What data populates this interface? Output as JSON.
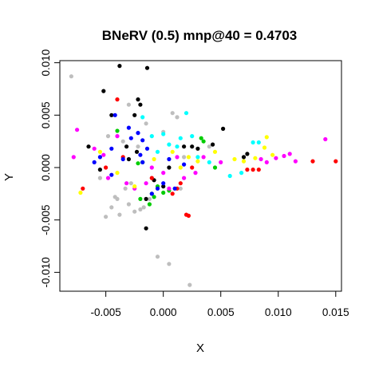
{
  "chart_data": {
    "type": "scatter",
    "title": "BNeRV (0.5) mnp@40 = 0.4703",
    "xlabel": "X",
    "ylabel": "Y",
    "xlim": [
      -0.009,
      0.0155
    ],
    "ylim": [
      -0.0118,
      0.0102
    ],
    "xticks": [
      -0.005,
      0.0,
      0.005,
      0.01,
      0.015
    ],
    "xtick_labels": [
      "-0.005",
      "0.000",
      "0.005",
      "0.010",
      "0.015"
    ],
    "yticks": [
      -0.01,
      -0.005,
      0.0,
      0.005,
      0.01
    ],
    "ytick_labels": [
      "-0.010",
      "-0.005",
      "0.000",
      "0.005",
      "0.010"
    ],
    "grid": false,
    "colors": {
      "black": "#000000",
      "red": "#ff0000",
      "green": "#00cd00",
      "blue": "#0000ff",
      "cyan": "#00ffff",
      "magenta": "#ff00ff",
      "yellow": "#ffff00",
      "gray": "#bebebe"
    },
    "series": [
      {
        "name": "gray",
        "color": "#bebebe",
        "points": [
          [
            -0.008,
            0.0087
          ],
          [
            0.0023,
            -0.0112
          ],
          [
            -0.0005,
            -0.0085
          ],
          [
            0.0005,
            -0.0092
          ],
          [
            -0.0038,
            -0.0045
          ],
          [
            -0.005,
            -0.0047
          ],
          [
            -0.0025,
            -0.0042
          ],
          [
            -0.003,
            -0.0035
          ],
          [
            -0.0042,
            -0.0028
          ],
          [
            -0.002,
            -0.004
          ],
          [
            -0.0033,
            -0.002
          ],
          [
            -0.0012,
            -0.003
          ],
          [
            -0.0028,
            -0.0015
          ],
          [
            -0.0017,
            -0.0038
          ],
          [
            -0.0045,
            -0.0038
          ],
          [
            0.0008,
            0.0052
          ],
          [
            0.0012,
            0.0048
          ],
          [
            -0.003,
            0.006
          ],
          [
            -0.0022,
            0.002
          ],
          [
            -0.001,
            -0.001
          ],
          [
            0.0018,
            0.001
          ],
          [
            0.004,
            0.002
          ],
          [
            -0.0035,
            0.0025
          ],
          [
            -0.0048,
            0.003
          ],
          [
            0.0,
            0.0034
          ],
          [
            -0.0015,
            0.0042
          ],
          [
            -0.004,
            -0.003
          ],
          [
            0.0015,
            -0.002
          ],
          [
            -0.0055,
            -0.001
          ]
        ]
      },
      {
        "name": "black",
        "color": "#000000",
        "points": [
          [
            -0.0038,
            0.0097
          ],
          [
            -0.0014,
            0.0095
          ],
          [
            -0.0052,
            0.0073
          ],
          [
            -0.0045,
            0.005
          ],
          [
            -0.0022,
            0.0065
          ],
          [
            -0.002,
            0.006
          ],
          [
            -0.0015,
            -0.0058
          ],
          [
            0.0052,
            0.0037
          ],
          [
            0.0043,
            0.0022
          ],
          [
            0.0073,
            0.0013
          ],
          [
            0.007,
            0.001
          ],
          [
            0.0018,
            0.002
          ],
          [
            -0.0032,
            0.002
          ],
          [
            -0.003,
            0.0008
          ],
          [
            -0.0023,
            0.0015
          ],
          [
            -0.0055,
            -0.0002
          ],
          [
            -0.0065,
            0.002
          ],
          [
            -0.0015,
            -0.003
          ],
          [
            0.0,
            -0.0018
          ],
          [
            0.003,
            0.0018
          ],
          [
            0.0025,
            0.002
          ],
          [
            -0.0008,
            -0.0012
          ],
          [
            0.0005,
            0.0
          ],
          [
            -0.0025,
            0.005
          ]
        ]
      },
      {
        "name": "red",
        "color": "#ff0000",
        "points": [
          [
            -0.004,
            0.0065
          ],
          [
            0.002,
            -0.0045
          ],
          [
            0.0022,
            -0.0046
          ],
          [
            0.0073,
            -0.0002
          ],
          [
            0.0078,
            -0.0002
          ],
          [
            0.0083,
            -0.0002
          ],
          [
            0.013,
            0.0006
          ],
          [
            0.015,
            0.0006
          ],
          [
            0.0008,
            -0.0025
          ],
          [
            0.0012,
            -0.002
          ],
          [
            -0.007,
            -0.002
          ],
          [
            -0.0035,
            0.001
          ],
          [
            -0.001,
            -0.001
          ],
          [
            0.0025,
            0.0
          ],
          [
            0.0015,
            -0.0015
          ],
          [
            -0.005,
            0.0
          ]
        ]
      },
      {
        "name": "green",
        "color": "#00cd00",
        "points": [
          [
            -0.004,
            0.0035
          ],
          [
            -0.0018,
            0.0005
          ],
          [
            0.0033,
            0.0028
          ],
          [
            0.0035,
            0.0025
          ],
          [
            -0.0005,
            -0.0018
          ],
          [
            -0.001,
            -0.0025
          ],
          [
            -0.002,
            -0.003
          ],
          [
            -0.0012,
            -0.0035
          ],
          [
            0.0005,
            -0.0022
          ],
          [
            -0.0022,
            0.0004
          ],
          [
            0.0045,
            0.0
          ],
          [
            -0.0008,
            -0.0028
          ],
          [
            0.0,
            -0.0024
          ]
        ]
      },
      {
        "name": "blue",
        "color": "#0000ff",
        "points": [
          [
            -0.0042,
            0.005
          ],
          [
            -0.0022,
            0.0033
          ],
          [
            -0.0018,
            0.0026
          ],
          [
            -0.003,
            0.0038
          ],
          [
            -0.0045,
            0.0018
          ],
          [
            -0.0045,
            -0.0007
          ],
          [
            -0.0018,
            0.0005
          ],
          [
            -0.0014,
            0.0018
          ],
          [
            -0.0005,
            -0.002
          ],
          [
            -0.001,
            -0.0025
          ],
          [
            0.0018,
            0.0003
          ],
          [
            0.0005,
            0.0008
          ],
          [
            -0.0055,
            0.001
          ],
          [
            -0.002,
            0.0012
          ],
          [
            -0.0035,
            0.0008
          ],
          [
            0.0,
            -0.0015
          ],
          [
            0.001,
            -0.002
          ],
          [
            -0.0028,
            0.0028
          ],
          [
            -0.006,
            0.0005
          ]
        ]
      },
      {
        "name": "cyan",
        "color": "#00ffff",
        "points": [
          [
            0.002,
            0.0052
          ],
          [
            -0.0018,
            0.0048
          ],
          [
            0.0,
            0.0032
          ],
          [
            0.0005,
            0.0022
          ],
          [
            0.0012,
            0.002
          ],
          [
            -0.001,
            0.003
          ],
          [
            0.0058,
            -0.0008
          ],
          [
            0.0078,
            0.0024
          ],
          [
            0.0083,
            0.0024
          ],
          [
            0.003,
            0.001
          ],
          [
            0.004,
            0.0005
          ],
          [
            -0.0005,
            0.0015
          ],
          [
            0.0025,
            0.003
          ],
          [
            0.0015,
            0.0028
          ],
          [
            0.0068,
            -0.0005
          ]
        ]
      },
      {
        "name": "magenta",
        "color": "#ff00ff",
        "points": [
          [
            -0.0075,
            0.0036
          ],
          [
            -0.0078,
            0.001
          ],
          [
            0.0141,
            0.0027
          ],
          [
            0.011,
            0.0013
          ],
          [
            0.0098,
            0.0009
          ],
          [
            0.0105,
            0.0011
          ],
          [
            0.0115,
            0.0006
          ],
          [
            0.009,
            0.0005
          ],
          [
            -0.006,
            0.0018
          ],
          [
            -0.0052,
            0.0012
          ],
          [
            -0.0048,
            -0.001
          ],
          [
            -0.0032,
            -0.0015
          ],
          [
            0.0018,
            -0.001
          ],
          [
            0.0,
            -0.0005
          ],
          [
            0.0028,
            -0.0005
          ],
          [
            -0.0025,
            -0.002
          ],
          [
            0.0005,
            -0.002
          ],
          [
            -0.001,
            0.0
          ],
          [
            0.0035,
            0.001
          ],
          [
            0.005,
            0.0005
          ],
          [
            -0.004,
            0.003
          ],
          [
            0.0085,
            0.0008
          ],
          [
            0.0012,
            0.001
          ],
          [
            -0.0015,
            -0.0015
          ]
        ]
      },
      {
        "name": "yellow",
        "color": "#ffff00",
        "points": [
          [
            -0.0072,
            -0.0024
          ],
          [
            0.0088,
            0.0019
          ],
          [
            0.009,
            0.0029
          ],
          [
            0.0095,
            0.0012
          ],
          [
            0.008,
            0.0009
          ],
          [
            0.0062,
            0.0008
          ],
          [
            0.003,
            0.0006
          ],
          [
            0.0022,
            0.001
          ],
          [
            -0.0055,
            0.0015
          ],
          [
            -0.0025,
            -0.0018
          ],
          [
            0.0008,
            0.0015
          ],
          [
            0.0045,
            0.0015
          ],
          [
            -0.004,
            -0.0005
          ],
          [
            0.0015,
            0.0
          ],
          [
            0.007,
            0.0006
          ],
          [
            -0.0008,
            0.0008
          ]
        ]
      }
    ]
  }
}
